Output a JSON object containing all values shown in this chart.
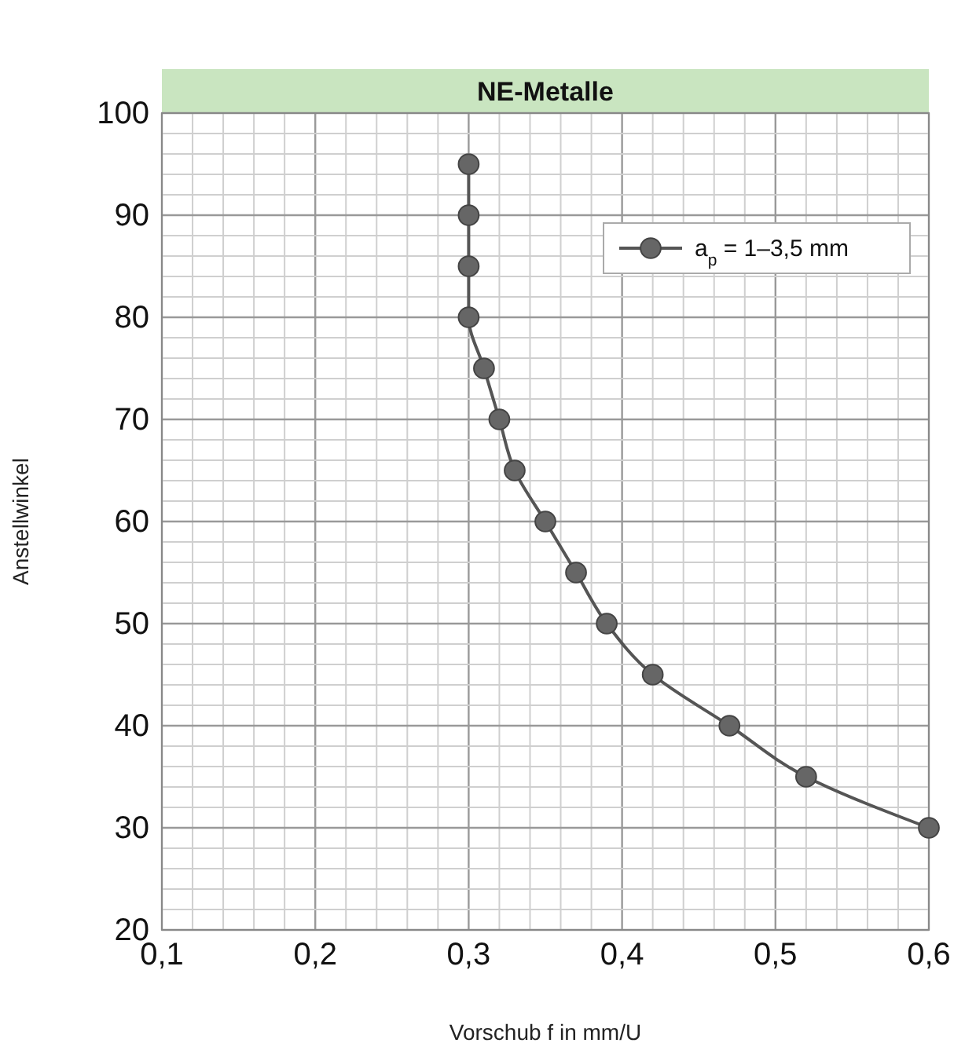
{
  "chart_data": {
    "type": "line",
    "title": "NE-Metalle",
    "xlabel": "Vorschub f in mm/U",
    "ylabel": "Anstellwinkel",
    "series": [
      {
        "name": "a$_{p}$ = 1–3,5 mm",
        "color": "#555555",
        "x": [
          0.3,
          0.3,
          0.3,
          0.3,
          0.31,
          0.32,
          0.33,
          0.35,
          0.37,
          0.39,
          0.42,
          0.47,
          0.52,
          0.6
        ],
        "values": [
          95,
          90,
          85,
          80,
          75,
          70,
          65,
          60,
          55,
          50,
          45,
          40,
          35,
          30
        ]
      }
    ],
    "xlim": [
      0.1,
      0.6
    ],
    "xticks": [
      {
        "value": 0.1,
        "label": "0,1"
      },
      {
        "value": 0.12,
        "label": null
      },
      {
        "value": 0.14,
        "label": null
      },
      {
        "value": 0.16,
        "label": null
      },
      {
        "value": 0.18,
        "label": null
      },
      {
        "value": 0.2,
        "label": "0,2"
      },
      {
        "value": 0.22,
        "label": null
      },
      {
        "value": 0.24,
        "label": null
      },
      {
        "value": 0.26,
        "label": null
      },
      {
        "value": 0.28,
        "label": null
      },
      {
        "value": 0.3,
        "label": "0,3"
      },
      {
        "value": 0.32,
        "label": null
      },
      {
        "value": 0.34,
        "label": null
      },
      {
        "value": 0.36,
        "label": null
      },
      {
        "value": 0.38,
        "label": null
      },
      {
        "value": 0.4,
        "label": "0,4"
      },
      {
        "value": 0.42,
        "label": null
      },
      {
        "value": 0.44,
        "label": null
      },
      {
        "value": 0.46,
        "label": null
      },
      {
        "value": 0.48,
        "label": null
      },
      {
        "value": 0.5,
        "label": "0,5"
      },
      {
        "value": 0.52,
        "label": null
      },
      {
        "value": 0.54,
        "label": null
      },
      {
        "value": 0.56,
        "label": null
      },
      {
        "value": 0.58,
        "label": null
      },
      {
        "value": 0.6,
        "label": "0,6"
      }
    ],
    "ylim": [
      20,
      100
    ],
    "yticks": [
      20,
      {
        "value": 22,
        "label": null
      },
      {
        "value": 24,
        "label": null
      },
      {
        "value": 26,
        "label": null
      },
      {
        "value": 28,
        "label": null
      },
      30,
      {
        "value": 32,
        "label": null
      },
      {
        "value": 34,
        "label": null
      },
      {
        "value": 36,
        "label": null
      },
      {
        "value": 38,
        "label": null
      },
      40,
      {
        "value": 42,
        "label": null
      },
      {
        "value": 44,
        "label": null
      },
      {
        "value": 46,
        "label": null
      },
      {
        "value": 48,
        "label": null
      },
      50,
      {
        "value": 52,
        "label": null
      },
      {
        "value": 54,
        "label": null
      },
      {
        "value": 56,
        "label": null
      },
      {
        "value": 58,
        "label": null
      },
      60,
      {
        "value": 62,
        "label": null
      },
      {
        "value": 64,
        "label": null
      },
      {
        "value": 66,
        "label": null
      },
      {
        "value": 68,
        "label": null
      },
      70,
      {
        "value": 72,
        "label": null
      },
      {
        "value": 74,
        "label": null
      },
      {
        "value": 76,
        "label": null
      },
      {
        "value": 78,
        "label": null
      },
      80,
      {
        "value": 82,
        "label": null
      },
      {
        "value": 84,
        "label": null
      },
      {
        "value": 86,
        "label": null
      },
      {
        "value": 88,
        "label": null
      },
      90,
      {
        "value": 92,
        "label": null
      },
      {
        "value": 94,
        "label": null
      },
      {
        "value": 96,
        "label": null
      },
      {
        "value": 98,
        "label": null
      },
      100
    ],
    "grid": true,
    "legend": "top right",
    "marker": "circle",
    "line_style": "solid"
  }
}
